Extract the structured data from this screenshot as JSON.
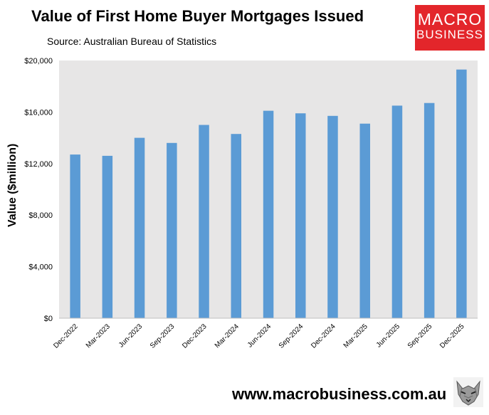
{
  "title": "Value of First Home Buyer Mortgages Issued",
  "subtitle": "Source: Australian Bureau of Statistics",
  "logo": {
    "line1": "MACRO",
    "line2": "BUSINESS",
    "color": "#e3262b"
  },
  "footer": {
    "url": "www.macrobusiness.com.au",
    "icon": "wolf-logo-icon"
  },
  "chart_data": {
    "type": "bar",
    "title": "Value of First Home Buyer Mortgages Issued",
    "ylabel": "Value ($million)",
    "xlabel": "",
    "categories": [
      "Dec-2022",
      "Mar-2023",
      "Jun-2023",
      "Sep-2023",
      "Dec-2023",
      "Mar-2024",
      "Jun-2024",
      "Sep-2024",
      "Dec-2024",
      "Mar-2025",
      "Jun-2025",
      "Sep-2025",
      "Dec-2025"
    ],
    "values": [
      12700,
      12600,
      14000,
      13600,
      15000,
      14300,
      16100,
      15900,
      15700,
      15100,
      16500,
      16700,
      19300
    ],
    "ylim": [
      0,
      20000
    ],
    "yticks": [
      0,
      4000,
      8000,
      12000,
      16000,
      20000
    ],
    "ytick_labels": [
      "$0",
      "$4,000",
      "$8,000",
      "$12,000",
      "$16,000",
      "$20,000"
    ],
    "bar_color": "#5b9bd5",
    "plot_background": "#e7e6e6",
    "grid": false,
    "legend": "none"
  }
}
